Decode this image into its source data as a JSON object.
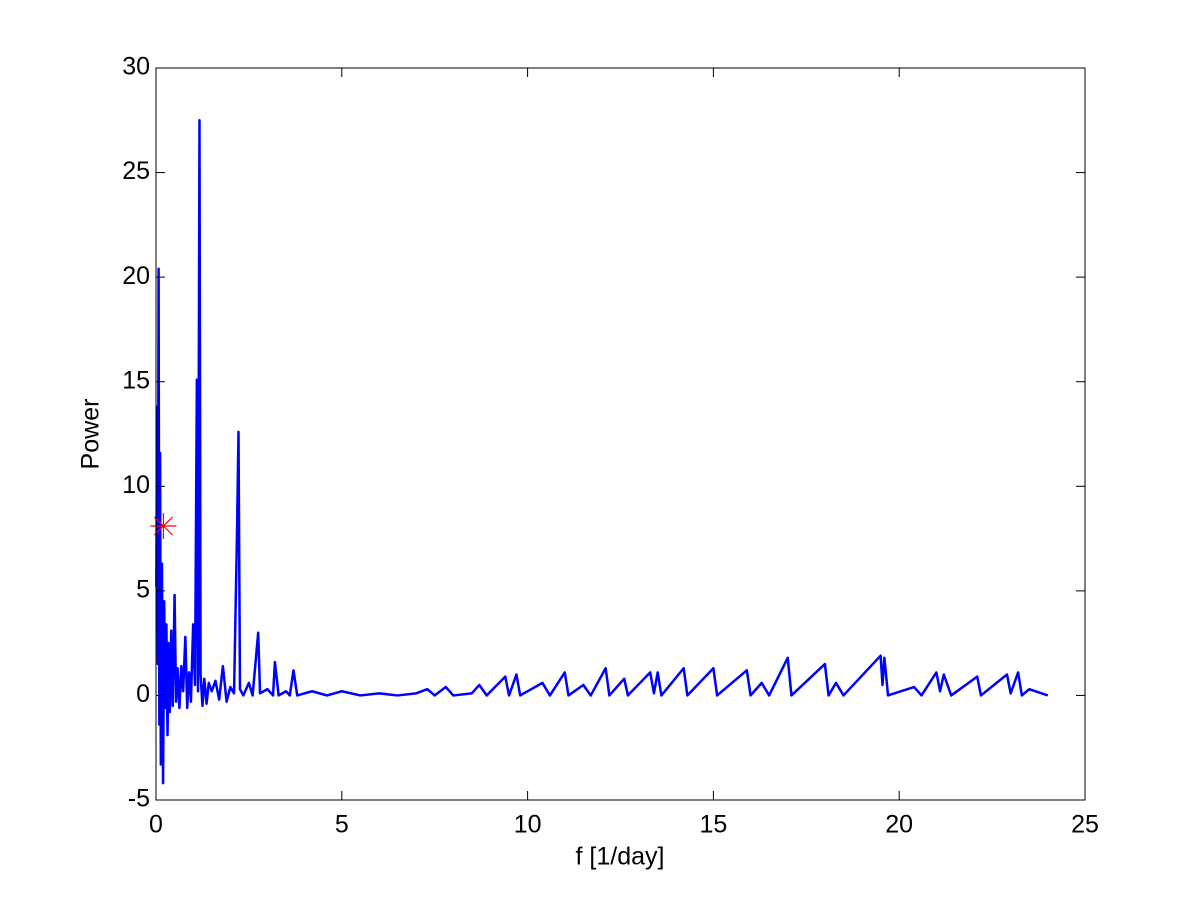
{
  "chart_data": {
    "type": "line",
    "xlabel": "f [1/day]",
    "ylabel": "Power",
    "xlim": [
      0,
      25
    ],
    "ylim": [
      -5,
      30
    ],
    "xticks": [
      0,
      5,
      10,
      15,
      20,
      25
    ],
    "yticks": [
      -5,
      0,
      5,
      10,
      15,
      20,
      25,
      30
    ],
    "grid": false,
    "x": [
      0.01,
      0.03,
      0.05,
      0.07,
      0.09,
      0.11,
      0.13,
      0.16,
      0.19,
      0.22,
      0.25,
      0.28,
      0.31,
      0.34,
      0.37,
      0.41,
      0.45,
      0.5,
      0.54,
      0.58,
      0.63,
      0.68,
      0.73,
      0.79,
      0.84,
      0.89,
      0.94,
      1.0,
      1.05,
      1.1,
      1.13,
      1.17,
      1.2,
      1.25,
      1.3,
      1.36,
      1.42,
      1.5,
      1.6,
      1.7,
      1.8,
      1.9,
      2.0,
      2.1,
      2.18,
      2.22,
      2.26,
      2.35,
      2.5,
      2.6,
      2.75,
      2.8,
      3.0,
      3.15,
      3.2,
      3.3,
      3.5,
      3.6,
      3.7,
      3.8,
      4.2,
      4.6,
      5.0,
      5.5,
      6.0,
      6.5,
      7.0,
      7.3,
      7.5,
      7.8,
      8.0,
      8.5,
      8.7,
      8.9,
      9.4,
      9.5,
      9.7,
      9.8,
      10.4,
      10.6,
      11.0,
      11.1,
      11.5,
      11.7,
      12.1,
      12.2,
      12.6,
      12.7,
      13.3,
      13.4,
      13.5,
      13.6,
      14.2,
      14.3,
      15.0,
      15.1,
      15.9,
      16.0,
      16.3,
      16.5,
      17.0,
      17.1,
      18.0,
      18.1,
      18.3,
      18.5,
      19.5,
      19.55,
      19.6,
      19.7,
      20.4,
      20.6,
      21.0,
      21.1,
      21.2,
      21.4,
      22.1,
      22.2,
      22.9,
      23.0,
      23.2,
      23.3,
      23.5,
      24.0
    ],
    "series": [
      {
        "color": "#0000ff",
        "values": [
          5.2,
          13.8,
          1.5,
          20.4,
          -1.4,
          11.6,
          -3.3,
          6.3,
          -4.2,
          4.5,
          -0.6,
          3.4,
          -1.9,
          2.5,
          -0.8,
          3.1,
          -0.5,
          4.8,
          -0.3,
          1.3,
          -0.6,
          1.4,
          0.2,
          2.8,
          -0.6,
          1.1,
          -0.3,
          3.4,
          0.5,
          15.1,
          0.2,
          27.5,
          1.0,
          -0.5,
          0.8,
          -0.4,
          0.6,
          0.2,
          0.7,
          -0.2,
          1.4,
          -0.3,
          0.4,
          0.1,
          7.8,
          12.6,
          0.3,
          0.0,
          0.6,
          0.0,
          3.0,
          0.1,
          0.3,
          0.0,
          1.6,
          0.0,
          0.2,
          0.0,
          1.2,
          0.0,
          0.2,
          0.0,
          0.2,
          0.0,
          0.1,
          0.0,
          0.1,
          0.3,
          0.0,
          0.4,
          0.0,
          0.1,
          0.5,
          0.0,
          0.9,
          0.0,
          1.0,
          0.0,
          0.6,
          0.0,
          1.1,
          0.0,
          0.5,
          0.0,
          1.3,
          0.0,
          0.8,
          0.0,
          1.1,
          0.1,
          1.1,
          0.0,
          1.3,
          0.0,
          1.3,
          0.0,
          1.2,
          0.0,
          0.6,
          0.0,
          1.8,
          0.0,
          1.5,
          0.0,
          0.6,
          0.0,
          1.9,
          0.5,
          1.8,
          0.0,
          0.4,
          0.0,
          1.1,
          0.2,
          1.0,
          0.0,
          0.9,
          0.0,
          1.0,
          0.1,
          1.1,
          0.0,
          0.3,
          0.0
        ]
      }
    ],
    "markers": [
      {
        "x": 0.2,
        "y": 8.1,
        "color": "#ff0000"
      }
    ]
  }
}
